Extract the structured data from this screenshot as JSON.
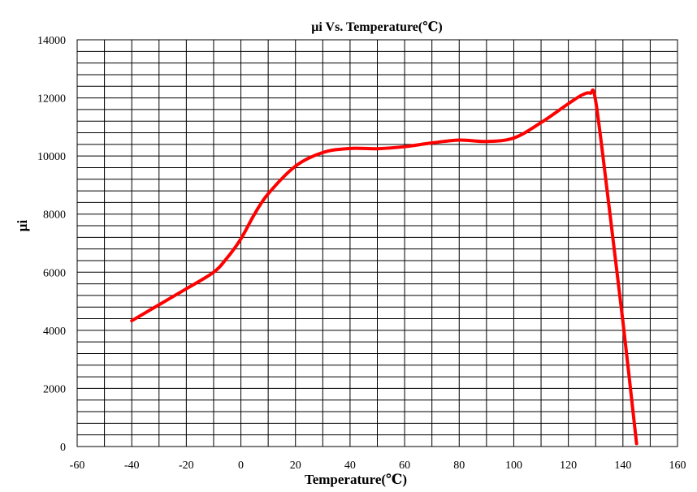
{
  "chart_data": {
    "type": "line",
    "title": "μi Vs. Temperature(℃)",
    "xlabel": "Temperature(℃)",
    "ylabel": "μi",
    "xlim": [
      -60,
      160
    ],
    "ylim": [
      0,
      14000
    ],
    "xticks": [
      "-60",
      "-40",
      "-20",
      "0",
      "20",
      "40",
      "60",
      "80",
      "100",
      "120",
      "140",
      "160"
    ],
    "yticks": [
      "0",
      "2000",
      "4000",
      "6000",
      "8000",
      "10000",
      "12000",
      "14000"
    ],
    "grid": true,
    "series": [
      {
        "color": "#ff0000",
        "x": [
          -40,
          -30,
          -20,
          -10,
          -5,
          0,
          5,
          10,
          20,
          30,
          40,
          50,
          60,
          70,
          80,
          90,
          100,
          110,
          120,
          125,
          128,
          130,
          135,
          140,
          145
        ],
        "y": [
          4330,
          4880,
          5430,
          6000,
          6500,
          7150,
          8000,
          8700,
          9650,
          10120,
          10260,
          10250,
          10320,
          10450,
          10550,
          10500,
          10620,
          11150,
          11800,
          12100,
          12160,
          11900,
          8200,
          4300,
          100
        ]
      }
    ]
  }
}
